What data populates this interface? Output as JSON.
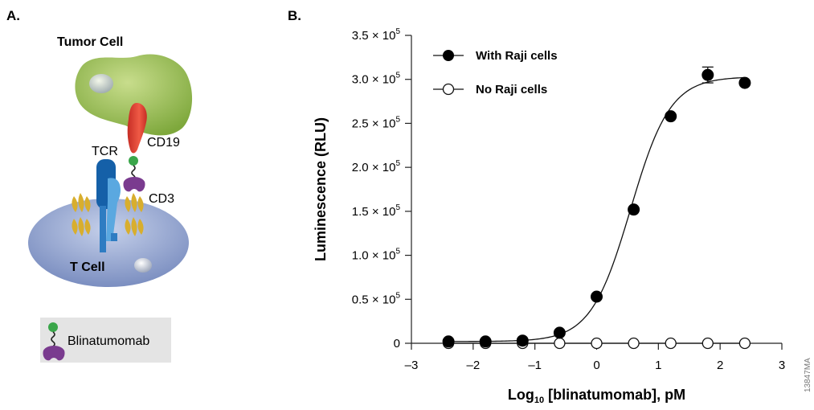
{
  "panel_a": {
    "letter": "A.",
    "tumor_label": "Tumor Cell",
    "tcell_label": "T Cell",
    "tcr_label": "TCR",
    "cd19_label": "CD19",
    "cd3_label": "CD3",
    "legend_label": "Blinatumomab",
    "colors": {
      "tumor": "#9bbd4e",
      "tcell": "#8d9fcb",
      "cd19": "#e9463a",
      "blin_green": "#3aa64a",
      "blin_purple": "#7a3b8f",
      "tcr_dark": "#1560a8",
      "tcr_light": "#5aa8e0",
      "cd3": "#d8ae2e"
    }
  },
  "panel_b": {
    "letter": "B.",
    "image_code": "13847MA"
  },
  "chart_data": {
    "type": "scatter",
    "xlabel_main": "Log",
    "xlabel_sub": "10",
    "xlabel_rest": " [blinatumomab], pM",
    "ylabel": "Luminescence (RLU)",
    "xlim": [
      -3,
      3
    ],
    "ylim": [
      0,
      350000
    ],
    "x_ticks": [
      -3,
      -2,
      -1,
      0,
      1,
      2,
      3
    ],
    "x_tick_labels": [
      "–3",
      "–2",
      "–1",
      "0",
      "1",
      "2",
      "3"
    ],
    "y_ticks": [
      0,
      50000,
      100000,
      150000,
      200000,
      250000,
      300000,
      350000
    ],
    "y_tick_labels": [
      {
        "mant": "0",
        "exp": ""
      },
      {
        "mant": "0.5 × 10",
        "exp": "5"
      },
      {
        "mant": "1.0 × 10",
        "exp": "5"
      },
      {
        "mant": "1.5 × 10",
        "exp": "5"
      },
      {
        "mant": "2.0 × 10",
        "exp": "5"
      },
      {
        "mant": "2.5 × 10",
        "exp": "5"
      },
      {
        "mant": "3.0 × 10",
        "exp": "5"
      },
      {
        "mant": "3.5 × 10",
        "exp": "5"
      }
    ],
    "legend_position": "top-left",
    "grid": false,
    "series": [
      {
        "name": "With Raji cells",
        "marker": "filled-circle",
        "x": [
          -2.4,
          -1.8,
          -1.2,
          -0.6,
          0.0,
          0.6,
          1.2,
          1.8,
          2.4
        ],
        "y": [
          2000,
          2000,
          3000,
          12000,
          53000,
          152000,
          258000,
          305000,
          296000
        ],
        "error": [
          0,
          0,
          0,
          0,
          0,
          0,
          0,
          9000,
          0
        ],
        "fit": {
          "model": "4PL",
          "bottom": 2000,
          "top": 303000,
          "logEC50": 0.55,
          "hill": 1.35
        }
      },
      {
        "name": "No Raji cells",
        "marker": "open-circle",
        "x": [
          -2.4,
          -1.8,
          -1.2,
          -0.6,
          0.0,
          0.6,
          1.2,
          1.8,
          2.4
        ],
        "y": [
          0,
          0,
          0,
          0,
          0,
          0,
          0,
          0,
          0
        ],
        "error": [
          0,
          0,
          0,
          0,
          0,
          0,
          0,
          0,
          0
        ]
      }
    ]
  }
}
